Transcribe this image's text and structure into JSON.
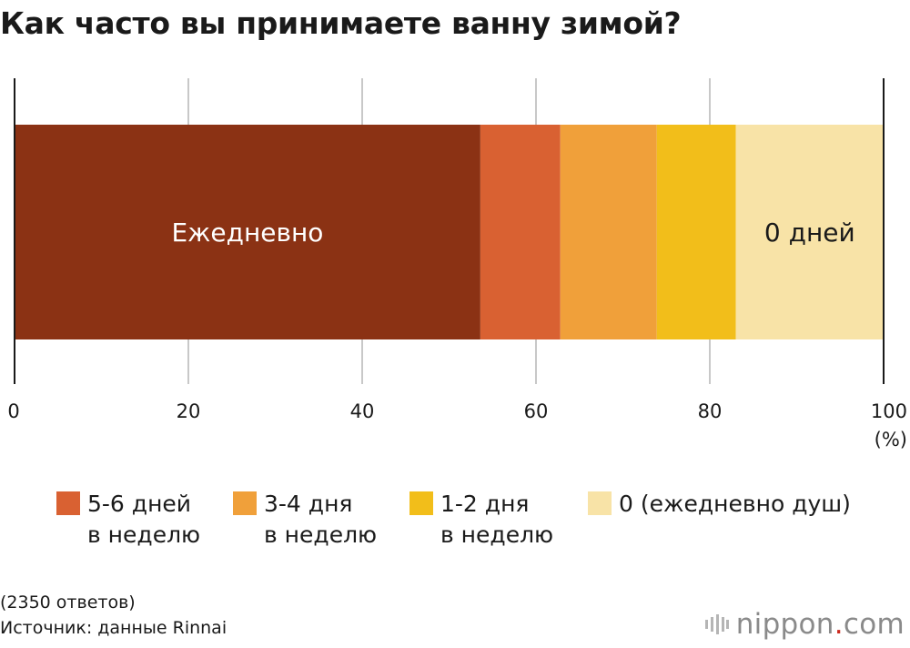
{
  "chart_data": {
    "type": "bar",
    "orientation": "horizontal",
    "stacked": true,
    "title": "Как часто вы принимаете ванну зимой?",
    "x_unit": "(%)",
    "xlim": [
      0,
      100
    ],
    "xticks": [
      "0",
      "20",
      "40",
      "60",
      "80",
      "100"
    ],
    "grid": true,
    "segments": [
      {
        "name": "Ежедневно",
        "value": 53.6,
        "color": "#8b3214",
        "label": "Ежедневно",
        "label_color": "#ffffff"
      },
      {
        "name": "5-6 дней в неделю",
        "value": 9.2,
        "color": "#d96132",
        "label": "",
        "label_color": "#ffffff"
      },
      {
        "name": "3-4 дня в неделю",
        "value": 11.1,
        "color": "#f0a03a",
        "label": "",
        "label_color": "#ffffff"
      },
      {
        "name": "1-2 дня в неделю",
        "value": 9.1,
        "color": "#f2be1a",
        "label": "",
        "label_color": "#1a1a1a"
      },
      {
        "name": "0 (ежедневно душ)",
        "value": 17.0,
        "color": "#f8e3a7",
        "label": "0 дней",
        "label_color": "#1a1a1a"
      }
    ]
  },
  "legend": [
    {
      "line1": "5-6 дней",
      "line2": "в неделю",
      "color": "#d96132"
    },
    {
      "line1": "3-4 дня",
      "line2": "в неделю",
      "color": "#f0a03a"
    },
    {
      "line1": "1-2 дня",
      "line2": "в неделю",
      "color": "#f2be1a"
    },
    {
      "line1": "0 (ежедневно душ)",
      "line2": "",
      "color": "#f8e3a7"
    }
  ],
  "footer": {
    "responses": "(2350 ответов)",
    "source": "Источник: данные Rinnai"
  },
  "brand": {
    "name": "nippon",
    "dot": ".",
    "suffix": "com",
    "icon": "nippon-logo-icon"
  }
}
